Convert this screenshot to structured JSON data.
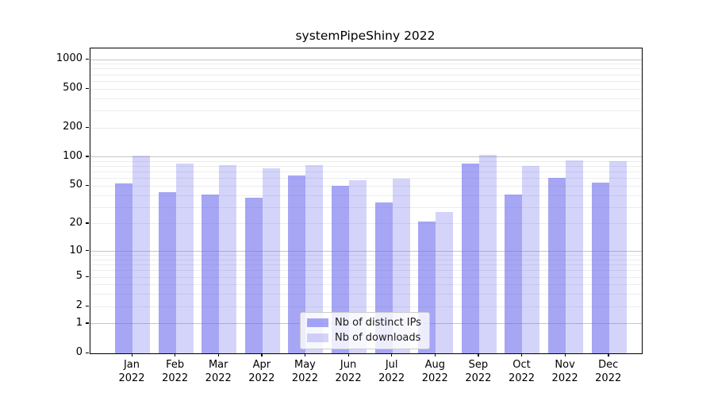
{
  "chart_data": {
    "type": "bar",
    "title": "systemPipeShiny 2022",
    "categories": [
      "Jan 2022",
      "Feb 2022",
      "Mar 2022",
      "Apr 2022",
      "May 2022",
      "Jun 2022",
      "Jul 2022",
      "Aug 2022",
      "Sep 2022",
      "Oct 2022",
      "Nov 2022",
      "Dec 2022"
    ],
    "series": [
      {
        "name": "Nb of distinct IPs",
        "values": [
          53,
          43,
          41,
          38,
          65,
          50,
          34,
          21,
          86,
          41,
          61,
          54
        ],
        "base_color": "#6666ee",
        "alpha": 0.58,
        "flat_color": "#a6a6f5"
      },
      {
        "name": "Nb of downloads",
        "values": [
          103,
          86,
          82,
          76,
          82,
          58,
          60,
          27,
          105,
          81,
          92,
          90
        ],
        "base_color": "#6666ee",
        "alpha": 0.28,
        "flat_color": "#d4d4fa"
      }
    ],
    "xlabel": "",
    "ylabel": "",
    "yscale": "log1p",
    "ylim": [
      0,
      1300
    ],
    "y_ticks": [
      1000,
      500,
      200,
      100,
      50,
      20,
      10,
      5,
      2,
      1,
      0
    ],
    "grid": {
      "on": true,
      "major_lines": [
        1,
        10,
        100,
        1000
      ],
      "minor_lines": [
        2,
        3,
        4,
        5,
        6,
        7,
        8,
        9,
        20,
        30,
        40,
        50,
        60,
        70,
        80,
        90,
        200,
        300,
        400,
        500,
        600,
        700,
        800,
        900
      ]
    },
    "legend_position": "lower center",
    "bar_layout": {
      "grouped": true,
      "bars_touching": true
    }
  }
}
